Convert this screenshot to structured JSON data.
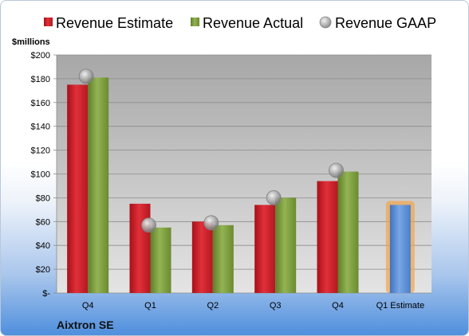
{
  "chart_data": {
    "type": "bar",
    "title": "",
    "ylabel": "$millions",
    "company": "Aixtron SE",
    "categories": [
      "Q4",
      "Q1",
      "Q2",
      "Q3",
      "Q4",
      "Q1 Estimate"
    ],
    "ylim": [
      0,
      200
    ],
    "yticks": [
      0,
      20,
      40,
      60,
      80,
      100,
      120,
      140,
      160,
      180,
      200
    ],
    "ytick_labels": [
      "$-",
      "$20",
      "$40",
      "$60",
      "$80",
      "$100",
      "$120",
      "$140",
      "$160",
      "$180",
      "$200"
    ],
    "grid": true,
    "legend_position": "top",
    "series": [
      {
        "name": "Revenue Estimate",
        "kind": "bar",
        "color": "#d0202a",
        "values": [
          175,
          75,
          60,
          74,
          94,
          null
        ]
      },
      {
        "name": "Revenue Actual",
        "kind": "bar",
        "color": "#7f9f3f",
        "values": [
          181,
          55,
          57,
          80,
          102,
          null
        ]
      },
      {
        "name": "Revenue GAAP",
        "kind": "marker",
        "color": "#a9a9a9",
        "values": [
          182,
          57,
          59,
          80,
          103,
          null
        ]
      },
      {
        "name": "",
        "kind": "bar",
        "color": "#5b8fd6",
        "values": [
          null,
          null,
          null,
          null,
          null,
          74
        ],
        "highlight": true
      }
    ]
  }
}
